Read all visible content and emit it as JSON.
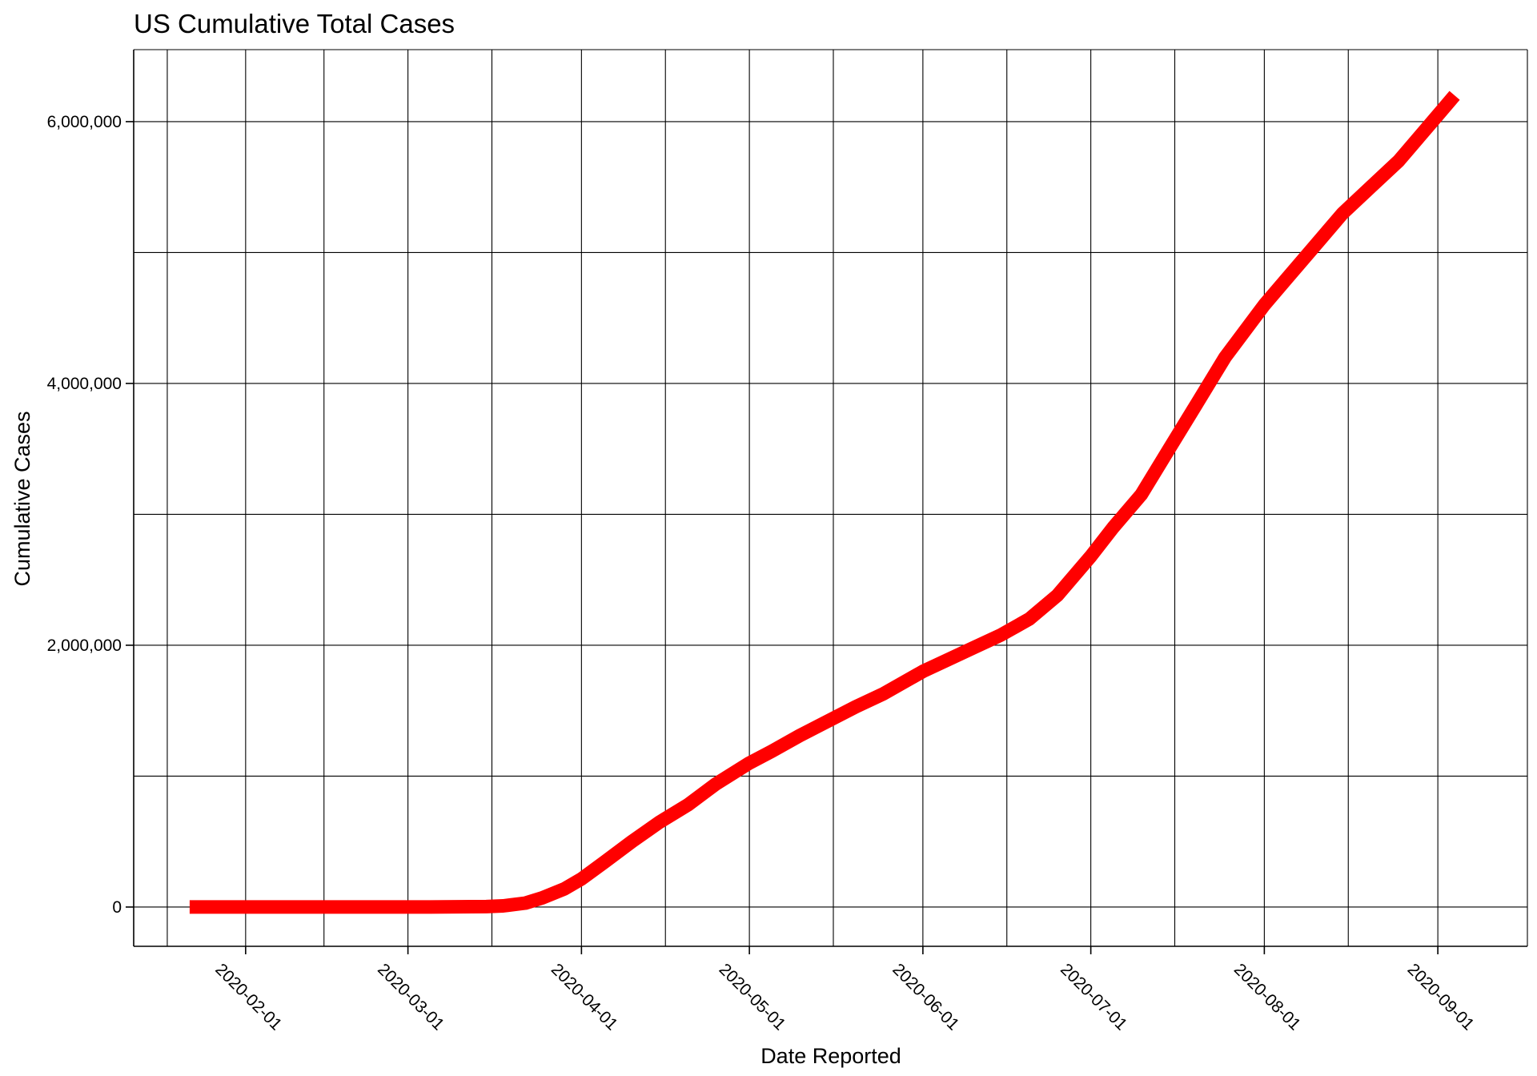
{
  "chart_data": {
    "type": "line",
    "title": "US Cumulative Total Cases",
    "xlabel": "Date Reported",
    "ylabel": "Cumulative Cases",
    "x_axis": {
      "scale": "date",
      "range": [
        "2020-01-12",
        "2020-09-17"
      ],
      "ticks": [
        "2020-02-01",
        "2020-03-01",
        "2020-04-01",
        "2020-05-01",
        "2020-06-01",
        "2020-07-01",
        "2020-08-01",
        "2020-09-01"
      ],
      "minor_grid": [
        "2020-01-18",
        "2020-02-15",
        "2020-03-16",
        "2020-04-16",
        "2020-05-16",
        "2020-06-16",
        "2020-07-16",
        "2020-08-16"
      ],
      "tick_rotation": "diagonal"
    },
    "y_axis": {
      "range": [
        -300000,
        6550000
      ],
      "ticks": [
        0,
        2000000,
        4000000,
        6000000
      ],
      "tick_labels": [
        "0",
        "2,000,000",
        "4,000,000",
        "6,000,000"
      ],
      "minor_grid": [
        1000000,
        3000000,
        5000000
      ]
    },
    "grid": true,
    "legend": "none",
    "series": [
      {
        "color": "#ff0000",
        "x": [
          "2020-01-22",
          "2020-02-01",
          "2020-02-15",
          "2020-03-01",
          "2020-03-05",
          "2020-03-15",
          "2020-03-18",
          "2020-03-22",
          "2020-03-25",
          "2020-03-29",
          "2020-04-01",
          "2020-04-05",
          "2020-04-10",
          "2020-04-15",
          "2020-04-20",
          "2020-04-25",
          "2020-05-01",
          "2020-05-05",
          "2020-05-10",
          "2020-05-15",
          "2020-05-20",
          "2020-05-25",
          "2020-06-01",
          "2020-06-05",
          "2020-06-10",
          "2020-06-15",
          "2020-06-20",
          "2020-06-25",
          "2020-07-01",
          "2020-07-05",
          "2020-07-10",
          "2020-07-15",
          "2020-07-20",
          "2020-07-25",
          "2020-08-01",
          "2020-08-05",
          "2020-08-10",
          "2020-08-15",
          "2020-08-20",
          "2020-08-25",
          "2020-09-01",
          "2020-09-04"
        ],
        "y": [
          1,
          8,
          15,
          75,
          200,
          3500,
          9000,
          30000,
          70000,
          140000,
          215000,
          340000,
          500000,
          650000,
          780000,
          940000,
          1100000,
          1190000,
          1310000,
          1420000,
          1530000,
          1630000,
          1800000,
          1880000,
          1980000,
          2080000,
          2200000,
          2380000,
          2680000,
          2900000,
          3150000,
          3500000,
          3850000,
          4200000,
          4600000,
          4800000,
          5050000,
          5300000,
          5500000,
          5700000,
          6050000,
          6200000
        ]
      }
    ]
  }
}
